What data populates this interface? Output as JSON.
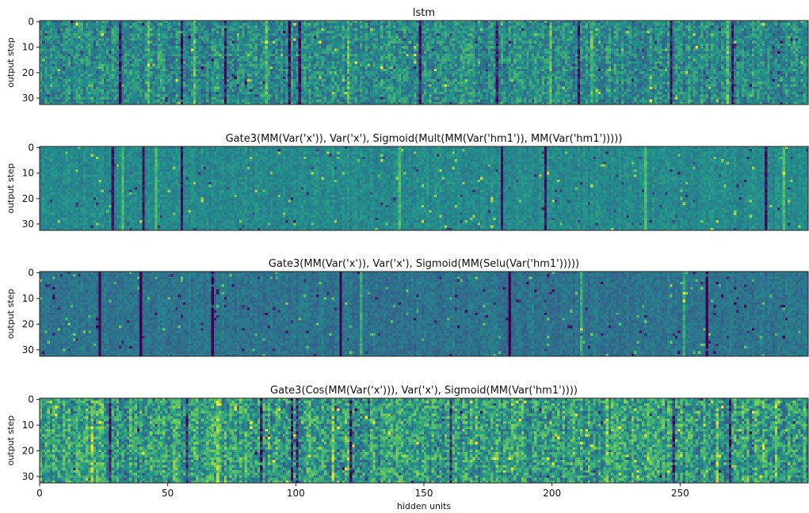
{
  "figure": {
    "colormap": "viridis",
    "colormap_stops": [
      "#440154",
      "#3b528b",
      "#21918c",
      "#5ec962",
      "#fde725"
    ],
    "axis_color": "#222222"
  },
  "chart_data": [
    {
      "type": "heatmap",
      "title": "lstm",
      "ylabel": "output step",
      "xlabel": "",
      "rows": 33,
      "cols": 300,
      "xlim": [
        0,
        299
      ],
      "ylim": [
        0,
        32
      ],
      "yticks": [
        0,
        10,
        20,
        30
      ],
      "xticks": [],
      "value_range": [
        0,
        1
      ],
      "base_level": 0.48,
      "spread": 0.16,
      "dark_columns": [
        31,
        55,
        72,
        97,
        101,
        148,
        178,
        210,
        246,
        270
      ],
      "bright_columns": [
        42,
        60,
        88,
        120,
        199,
        215,
        268
      ]
    },
    {
      "type": "heatmap",
      "title": "Gate3(MM(Var('x')), Var('x'), Sigmoid(Mult(MM(Var('hm1')), MM(Var('hm1')))))",
      "ylabel": "output step",
      "xlabel": "",
      "rows": 33,
      "cols": 300,
      "xlim": [
        0,
        299
      ],
      "ylim": [
        0,
        32
      ],
      "yticks": [
        0,
        10,
        20,
        30
      ],
      "xticks": [],
      "value_range": [
        0,
        1
      ],
      "base_level": 0.47,
      "spread": 0.07,
      "dark_columns": [
        28,
        40,
        55,
        180,
        197,
        283
      ],
      "bright_columns": [
        32,
        45,
        140,
        236,
        290
      ]
    },
    {
      "type": "heatmap",
      "title": "Gate3(MM(Var('x')), Var('x'), Sigmoid(MM(Selu(Var('hm1')))))",
      "ylabel": "output step",
      "xlabel": "",
      "rows": 33,
      "cols": 300,
      "xlim": [
        0,
        299
      ],
      "ylim": [
        0,
        32
      ],
      "yticks": [
        0,
        10,
        20,
        30
      ],
      "xticks": [],
      "value_range": [
        0,
        1
      ],
      "base_level": 0.38,
      "spread": 0.07,
      "dark_columns": [
        23,
        39,
        67,
        117,
        125,
        183,
        260
      ],
      "bright_columns": [
        125,
        211,
        251
      ]
    },
    {
      "type": "heatmap",
      "title": "Gate3(Cos(MM(Var('x'))), Var('x'), Sigmoid(MM(Var('hm1'))))",
      "ylabel": "output step",
      "xlabel": "hidden units",
      "rows": 33,
      "cols": 300,
      "xlim": [
        0,
        299
      ],
      "ylim": [
        0,
        32
      ],
      "yticks": [
        0,
        10,
        20,
        30
      ],
      "xticks": [
        0,
        50,
        100,
        150,
        200,
        250
      ],
      "value_range": [
        0,
        1
      ],
      "base_level": 0.55,
      "spread": 0.22,
      "dark_columns": [
        27,
        57,
        86,
        98,
        100,
        121,
        160,
        247,
        269
      ],
      "bright_columns": [
        20,
        69,
        114,
        221,
        264,
        287
      ]
    }
  ]
}
